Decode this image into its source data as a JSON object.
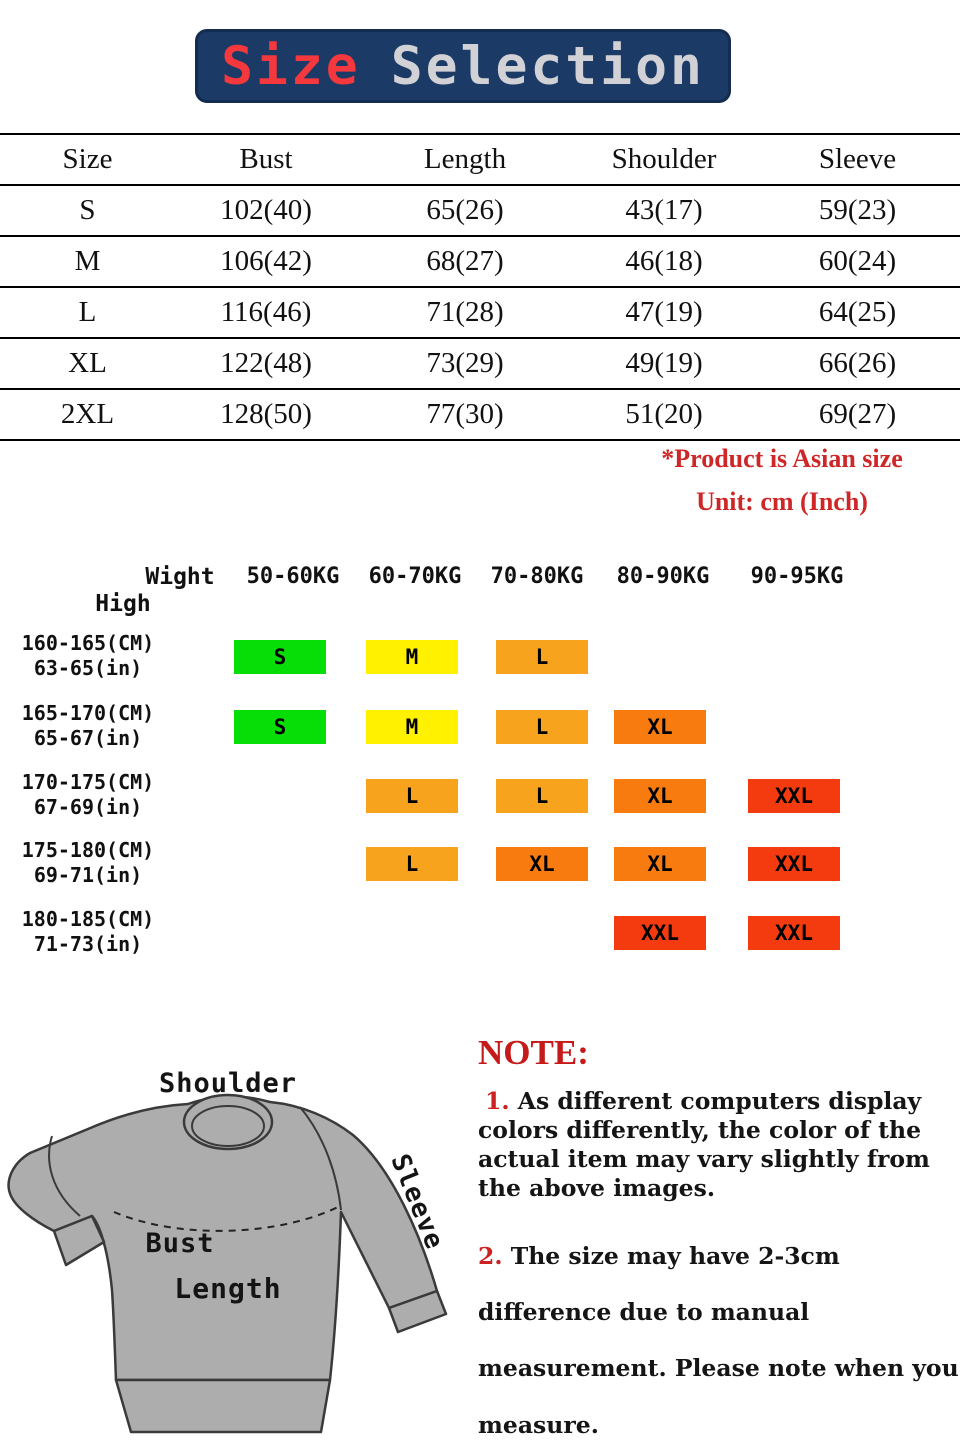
{
  "title": {
    "word1": "Size",
    "word2": "Selection"
  },
  "colors": {
    "banner_bg": "#1b3a66",
    "banner_word1": "#f5383e",
    "banner_word2": "#d2d2d6",
    "red_text": "#cf2728"
  },
  "size_table": {
    "headers": [
      "Size",
      "Bust",
      "Length",
      "Shoulder",
      "Sleeve"
    ],
    "rows": [
      [
        "S",
        "102(40)",
        "65(26)",
        "43(17)",
        "59(23)"
      ],
      [
        "M",
        "106(42)",
        "68(27)",
        "46(18)",
        "60(24)"
      ],
      [
        "L",
        "116(46)",
        "71(28)",
        "47(19)",
        "64(25)"
      ],
      [
        "XL",
        "122(48)",
        "73(29)",
        "49(19)",
        "66(26)"
      ],
      [
        "2XL",
        "128(50)",
        "77(30)",
        "51(20)",
        "69(27)"
      ]
    ]
  },
  "red_notes": {
    "line1": "*Product is Asian size",
    "line2": "Unit: cm (Inch)"
  },
  "fit_chart": {
    "corner": {
      "weight_label": "Wight",
      "height_label": "High"
    },
    "weight_headers": [
      "50-60KG",
      "60-70KG",
      "70-80KG",
      "80-90KG",
      "90-95KG"
    ],
    "colors": {
      "green": "#07dd07",
      "yellow": "#fff100",
      "orange": "#f7a31e",
      "dark_orange": "#f87b10",
      "red": "#f43b0f"
    },
    "rows": [
      {
        "height_cm": "160-165(CM)",
        "height_in": "63-65(in)",
        "cells": [
          {
            "col": 0,
            "size": "S",
            "color": "green"
          },
          {
            "col": 1,
            "size": "M",
            "color": "yellow"
          },
          {
            "col": 2,
            "size": "L",
            "color": "orange"
          }
        ]
      },
      {
        "height_cm": "165-170(CM)",
        "height_in": "65-67(in)",
        "cells": [
          {
            "col": 0,
            "size": "S",
            "color": "green"
          },
          {
            "col": 1,
            "size": "M",
            "color": "yellow"
          },
          {
            "col": 2,
            "size": "L",
            "color": "orange"
          },
          {
            "col": 3,
            "size": "XL",
            "color": "dark_orange"
          }
        ]
      },
      {
        "height_cm": "170-175(CM)",
        "height_in": "67-69(in)",
        "cells": [
          {
            "col": 1,
            "size": "L",
            "color": "orange"
          },
          {
            "col": 2,
            "size": "L",
            "color": "orange"
          },
          {
            "col": 3,
            "size": "XL",
            "color": "dark_orange"
          },
          {
            "col": 4,
            "size": "XXL",
            "color": "red"
          }
        ]
      },
      {
        "height_cm": "175-180(CM)",
        "height_in": "69-71(in)",
        "cells": [
          {
            "col": 1,
            "size": "L",
            "color": "orange"
          },
          {
            "col": 2,
            "size": "XL",
            "color": "dark_orange"
          },
          {
            "col": 3,
            "size": "XL",
            "color": "dark_orange"
          },
          {
            "col": 4,
            "size": "XXL",
            "color": "red"
          }
        ]
      },
      {
        "height_cm": "180-185(CM)",
        "height_in": "71-73(in)",
        "cells": [
          {
            "col": 3,
            "size": "XXL",
            "color": "red"
          },
          {
            "col": 4,
            "size": "XXL",
            "color": "red"
          }
        ]
      }
    ]
  },
  "diagram": {
    "labels": {
      "shoulder": "Shoulder",
      "sleeve": "Sleeve",
      "bust": "Bust",
      "length": "Length"
    }
  },
  "note_section": {
    "heading": "NOTE:",
    "items": [
      {
        "num": "1.",
        "text": "As different computers display colors differently, the color of the actual item may vary slightly from the above images."
      },
      {
        "num": "2.",
        "text": "The size may have 2-3cm difference due to manual measurement. Please note when you measure."
      }
    ]
  }
}
